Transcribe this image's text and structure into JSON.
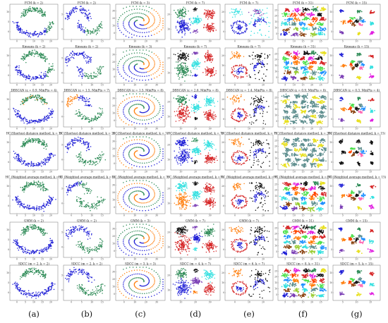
{
  "figure": {
    "column_labels": [
      "(a)",
      "(b)",
      "(c)",
      "(d)",
      "(e)",
      "(f)",
      "(g)"
    ],
    "row_titles": [
      [
        "FCM (k = 2)",
        "FCM (k = 2)",
        "FCM (k = 3)",
        "FCM (k = 7)",
        "FCM (k = 7)",
        "FCM (k = 31)",
        "FCM (k = 15)"
      ],
      [
        "Kmeans (k = 2)",
        "Kmeans (k = 2)",
        "Kmeans (k = 3)",
        "Kmeans (k = 7)",
        "Kmeans (k = 7)",
        "Kmeans (k = 31)",
        "Kmeans (k = 15)"
      ],
      [
        "DBSCAN (ε = 0.9, MinPts = 4)",
        "DBSCAN (ε = 1.5, MinPts = 7)",
        "DBSCAN (ε = 1.5, MinPts = 8)",
        "DBSCAN (ε = 2.6, MinPts = 8)",
        "DBSCAN (ε = 1.4, MinPts = 8)",
        "DBSCAN (ε = 0.9, MinPts = 8)",
        "DBSCAN (ε = 0.3, MinPts = 4)"
      ],
      [
        "HC(Shortest distance method, k = 2)",
        "HC(Shortest distance method, k = 2)",
        "HC(Shortest distance method, k = 3)",
        "HC(Shortest distance method, k = 7)",
        "HC(Shortest distance method, k = 7)",
        "HC(Shortest distance method, k = 31)",
        "HC(Shortest distance method, k = 15)"
      ],
      [
        "HC (Weighted average method, k = 2)",
        "HC (Weighted average method, k = 2)",
        "HC (Weighted average method, k = 3)",
        "HC (Weighted average method, k = 7)",
        "HC (Weighted average method, k = 7)",
        "HC (Weighted average method, k = 31)",
        "HC (Weighted average method, k = 15)"
      ],
      [
        "GMM (k = 2)",
        "GMM (k = 2)",
        "GMM (k = 3)",
        "GMM (k = 7)",
        "GMM (k = 7)",
        "GMM (k = 31)",
        "GMM (k = 15)"
      ],
      [
        "SDCC (m = 2, k = 2)",
        "SDCC (m = 2, k = 2)",
        "SDCC (m = 3, k = 3)",
        "SDCC (m = 4, k = 7)",
        "SDCC (m = 6, k = 7)",
        "SDCC (m = 8, k = 31)",
        "SDCC (m = 5, k = 15)"
      ]
    ]
  },
  "chart_data": [
    {
      "dataset": "(a)",
      "type": "scatter",
      "xlim": [
        -2,
        22
      ],
      "ylim": [
        -2,
        14
      ],
      "xticks": [
        "0",
        "5",
        "10",
        "15",
        "20"
      ],
      "yticks": [
        "0",
        "5",
        "10"
      ],
      "grid": false,
      "legend": "none"
    },
    {
      "dataset": "(b)",
      "type": "scatter",
      "xlim": [
        -2,
        20
      ],
      "ylim": [
        -1,
        10
      ],
      "xticks": [
        "0",
        "5",
        "10",
        "15"
      ],
      "yticks": [
        "0",
        "5"
      ],
      "grid": false,
      "legend": "none"
    },
    {
      "dataset": "(c)",
      "type": "scatter",
      "xlim": [
        -20,
        40
      ],
      "ylim": [
        -20,
        40
      ],
      "xticks": [
        "0",
        "10",
        "20",
        "30"
      ],
      "yticks": [
        "0",
        "10",
        "20",
        "30"
      ],
      "grid": false,
      "legend": "none"
    },
    {
      "dataset": "(d)",
      "type": "scatter",
      "xlim": [
        0,
        40
      ],
      "ylim": [
        0,
        30
      ],
      "xticks": [
        "10",
        "20",
        "30"
      ],
      "yticks": [
        "10",
        "20"
      ],
      "grid": false,
      "legend": "none"
    },
    {
      "dataset": "(e)",
      "type": "scatter",
      "xlim": [
        -5,
        25
      ],
      "ylim": [
        -10,
        30
      ],
      "xticks": [
        "0",
        "10",
        "20"
      ],
      "yticks": [
        "0",
        "10",
        "20"
      ],
      "grid": false,
      "legend": "none"
    },
    {
      "dataset": "(f)",
      "type": "scatter",
      "xlim": [
        0,
        35
      ],
      "ylim": [
        0,
        30
      ],
      "xticks": [
        "5",
        "10",
        "15",
        "20",
        "25"
      ],
      "yticks": [
        "5",
        "10",
        "15",
        "20",
        "25"
      ],
      "grid": false,
      "legend": "none"
    },
    {
      "dataset": "(g)",
      "type": "scatter",
      "xlim": [
        0,
        20
      ],
      "ylim": [
        0,
        20
      ],
      "xticks": [
        "5",
        "10",
        "15"
      ],
      "yticks": [
        "5",
        "10",
        "15"
      ],
      "grid": false,
      "legend": "none"
    }
  ],
  "colors": {
    "blue": "#1f1fd6",
    "green": "#2e8b57",
    "orange": "#ff7f0e",
    "red": "#d62728",
    "black": "#111111",
    "cyan": "#33e0e0",
    "purple": "#7b3fb5",
    "yellow": "#e8e020",
    "magenta": "#e020e0",
    "lime": "#4ee04e",
    "slate": "#5f8f8f",
    "brown": "#8b4513",
    "pink": "#ff69b4"
  }
}
